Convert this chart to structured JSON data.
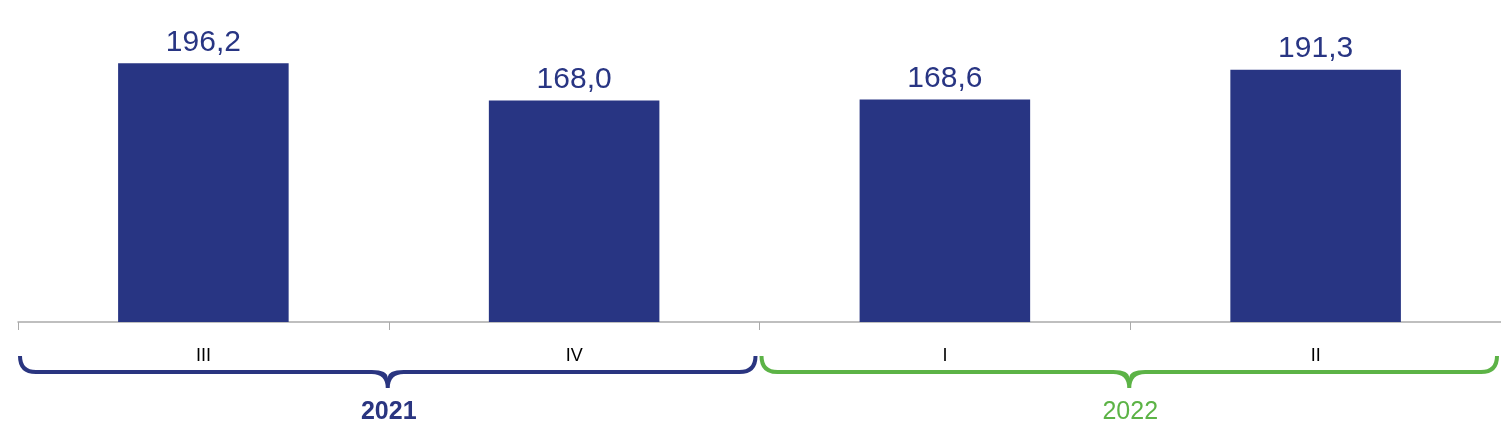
{
  "chart_data": {
    "type": "bar",
    "categories": [
      "III",
      "IV",
      "I",
      "II"
    ],
    "values": [
      196.2,
      168.0,
      168.6,
      191.3
    ],
    "value_labels": [
      "196,2",
      "168,0",
      "168,6",
      "191,3"
    ],
    "color": "#283583",
    "tick_labels": "x",
    "annotations": [
      "2021",
      "2022"
    ]
  }
}
